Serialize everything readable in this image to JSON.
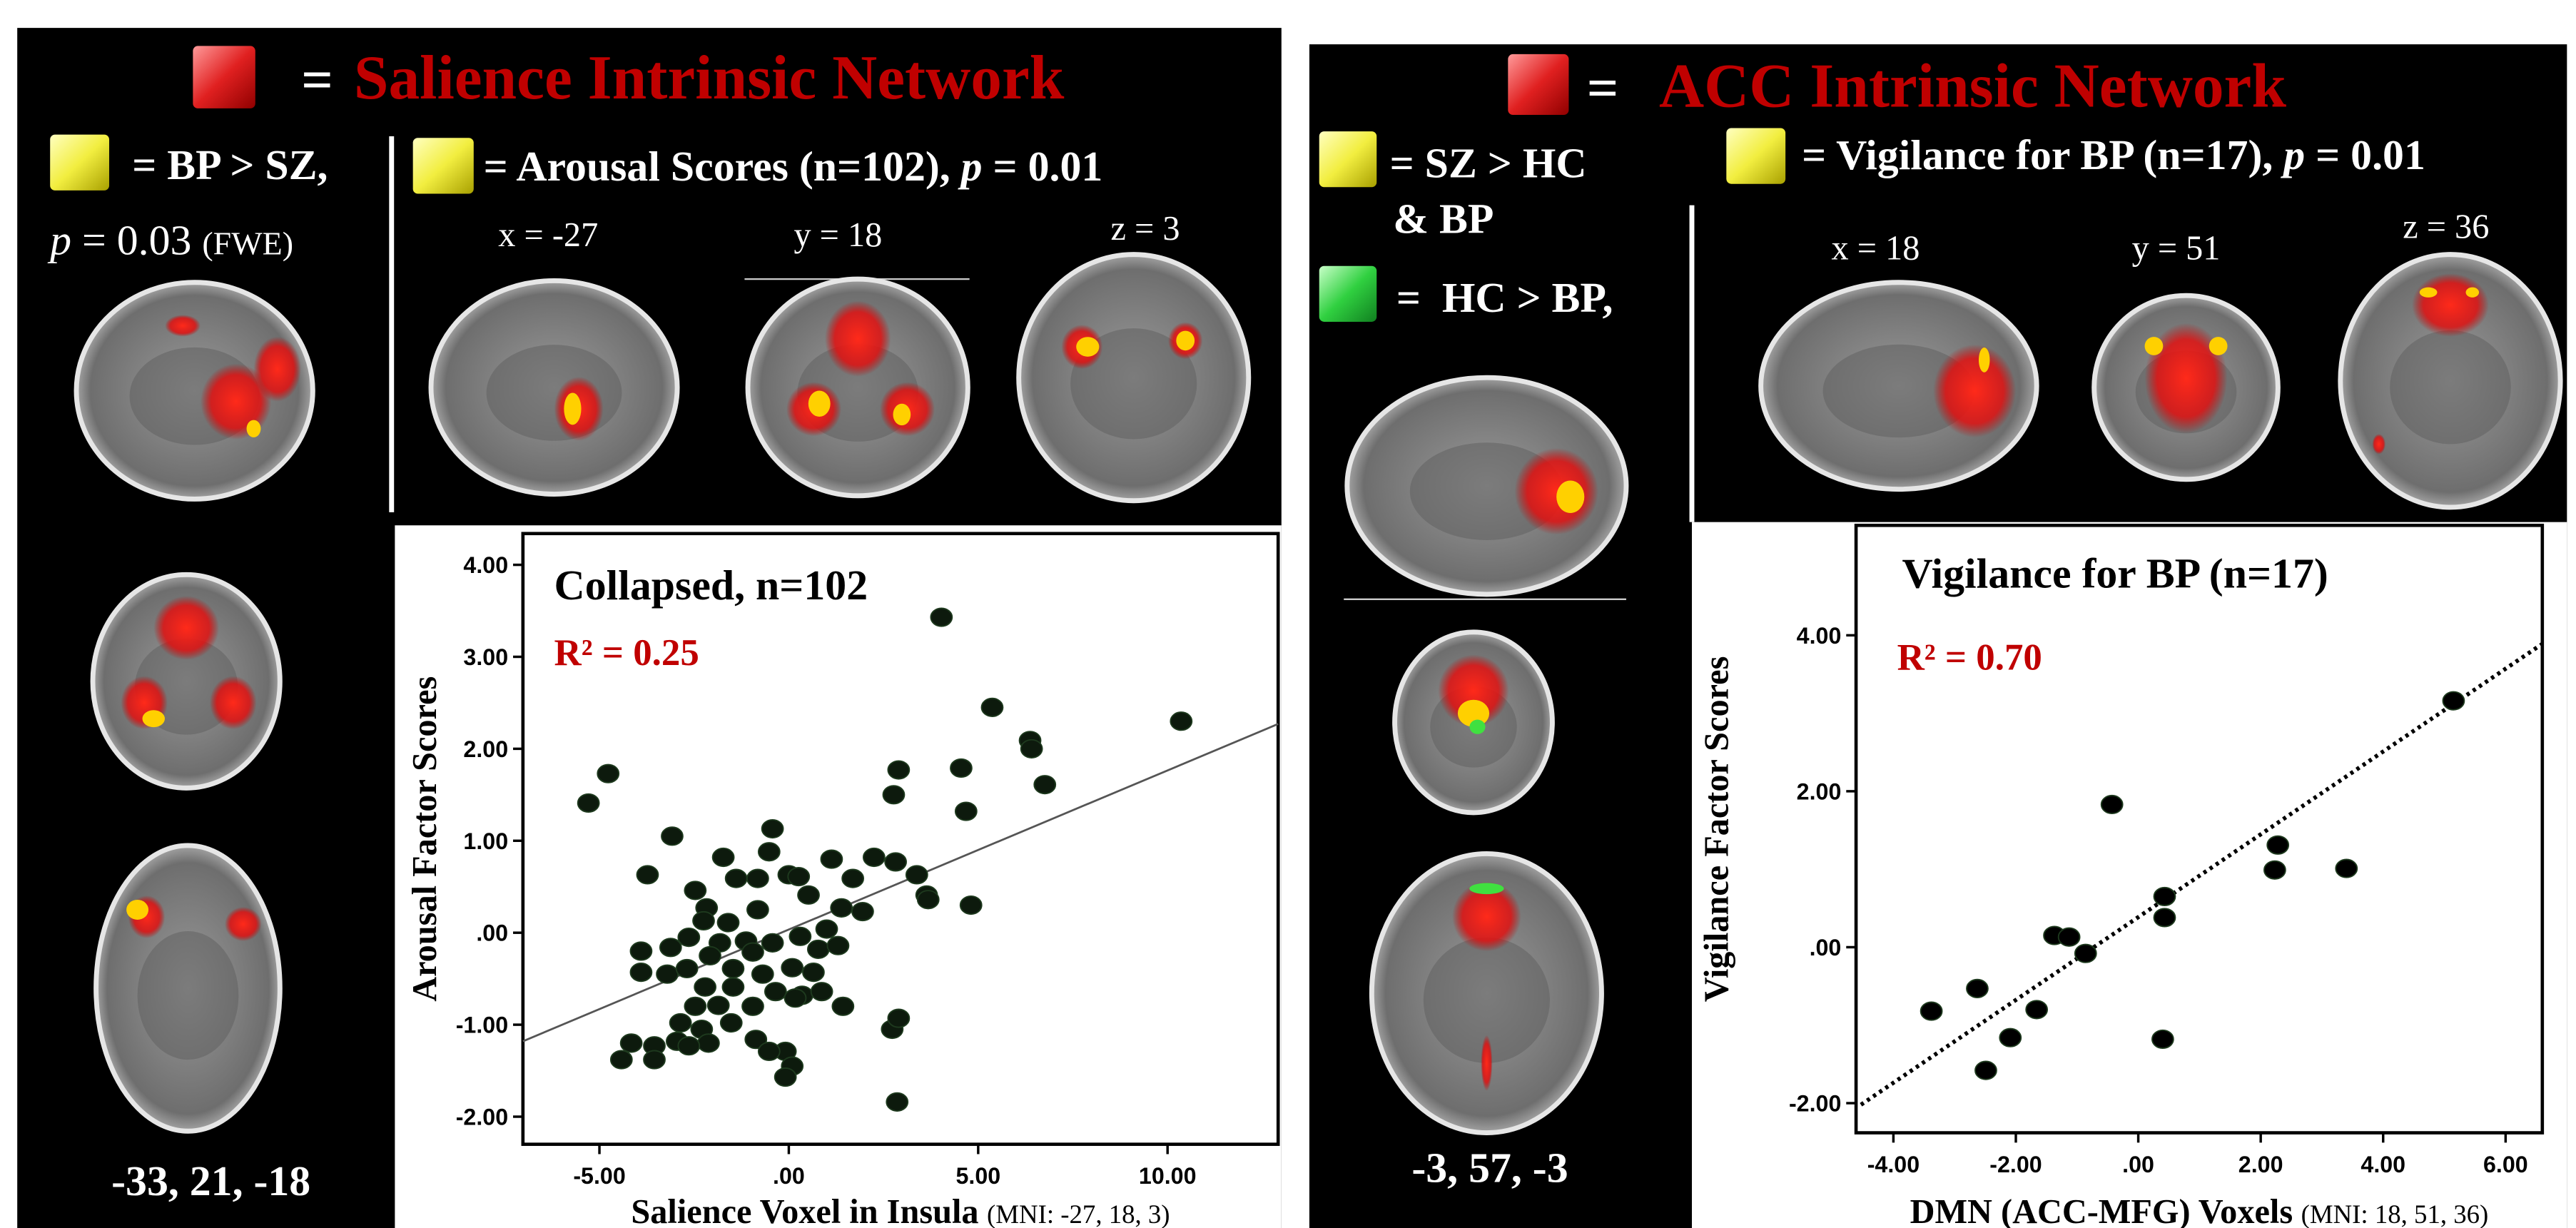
{
  "left_panel": {
    "title_eq": "=",
    "title": "Salience Intrinsic Network",
    "legend_group": "= BP > SZ,",
    "legend_group_p": "p",
    "legend_group_stat": "= 0.03",
    "legend_group_corr": "(FWE)",
    "legend_score": "= Arousal Scores (n=102),",
    "legend_score_p": "p",
    "legend_score_stat": "= 0.01",
    "slice_x": "x = -27",
    "slice_y": "y = 18",
    "slice_z": "z = 3",
    "coords": "-33, 21, -18"
  },
  "right_panel": {
    "title_eq": "=",
    "title": "ACC Intrinsic Network",
    "legend_group_1a": "= SZ > HC",
    "legend_group_1b": "& BP",
    "legend_group_2": "=  HC > BP,",
    "legend_score": "= Vigilance for BP (n=17),",
    "legend_score_p": "p",
    "legend_score_stat": "= 0.01",
    "slice_x": "x = 18",
    "slice_y": "y = 51",
    "slice_z": "z = 36",
    "coords": "-3, 57, -3"
  },
  "chart_data": [
    {
      "type": "scatter",
      "title": "Collapsed, n=102",
      "annotation": "R² = 0.25",
      "x_label": "Salience Voxel in Insula",
      "x_label_note": "(MNI: -27, 18, 3)",
      "y_label": "Arousal Factor Scores",
      "color": "#0d1a0d",
      "xlim": [
        -7.02,
        12.92
      ],
      "ylim": [
        -2.3,
        4.34
      ],
      "xticks": [
        {
          "value": -5,
          "label": "-5.00"
        },
        {
          "value": 0,
          "label": ".00"
        },
        {
          "value": 5,
          "label": "5.00"
        },
        {
          "value": 10,
          "label": "10.00"
        }
      ],
      "yticks": [
        {
          "value": -2,
          "label": "-2.00"
        },
        {
          "value": -1,
          "label": "-1.00"
        },
        {
          "value": 0,
          "label": ".00"
        },
        {
          "value": 1,
          "label": "1.00"
        },
        {
          "value": 2,
          "label": "2.00"
        },
        {
          "value": 3,
          "label": "3.00"
        },
        {
          "value": 4,
          "label": "4.00"
        }
      ],
      "fit_line": {
        "x": [
          -7.02,
          12.92
        ],
        "y": [
          -1.18,
          2.27
        ],
        "color": "#555555"
      },
      "x": [
        4.03,
        10.36,
        5.37,
        6.37,
        6.41,
        6.76,
        -4.77,
        -5.29,
        2.9,
        4.55,
        2.77,
        4.68,
        -3.08,
        -0.43,
        -0.52,
        -1.73,
        2.25,
        2.82,
        1.13,
        0,
        0.26,
        -3.73,
        -1.39,
        -0.82,
        1.69,
        3.38,
        0.52,
        -2.47,
        -2.17,
        1.39,
        1.95,
        3.64,
        3.68,
        4.81,
        -0.82,
        -2.25,
        -1.6,
        1.0,
        -2.64,
        -1.82,
        -1.13,
        -0.43,
        0.3,
        0.78,
        1.3,
        -3.12,
        -3.9,
        -2.08,
        -0.95,
        -3.9,
        -3.21,
        -2.69,
        -1.47,
        -0.69,
        0.09,
        0.65,
        -2.21,
        -1.47,
        -0.35,
        0.35,
        1.43,
        -2.47,
        -1.86,
        -0.95,
        0.17,
        0.87,
        -2.86,
        -2.3,
        -1.52,
        -2.12,
        -0.87,
        -0.09,
        -4.16,
        -3.55,
        -2.95,
        -4.42,
        -3.55,
        -2.64,
        0.09,
        -0.09,
        2.73,
        2.9,
        2.86,
        -0.52
      ],
      "values": [
        3.43,
        2.3,
        2.45,
        2.09,
        2.0,
        1.61,
        1.73,
        1.41,
        1.77,
        1.79,
        1.5,
        1.32,
        1.05,
        1.13,
        0.88,
        0.82,
        0.82,
        0.77,
        0.8,
        0.63,
        0.61,
        0.63,
        0.59,
        0.59,
        0.59,
        0.63,
        0.41,
        0.46,
        0.27,
        0.27,
        0.23,
        0.41,
        0.36,
        0.3,
        0.25,
        0.13,
        0.11,
        0.04,
        -0.05,
        -0.11,
        -0.09,
        -0.11,
        -0.04,
        -0.18,
        -0.14,
        -0.16,
        -0.2,
        -0.25,
        -0.21,
        -0.43,
        -0.45,
        -0.39,
        -0.39,
        -0.45,
        -0.38,
        -0.43,
        -0.59,
        -0.59,
        -0.64,
        -0.68,
        -0.8,
        -0.8,
        -0.79,
        -0.8,
        -0.71,
        -0.64,
        -0.98,
        -1.05,
        -0.98,
        -1.2,
        -1.16,
        -1.29,
        -1.2,
        -1.23,
        -1.18,
        -1.38,
        -1.38,
        -1.23,
        -1.45,
        -1.57,
        -1.05,
        -0.93,
        -1.84,
        -1.29
      ]
    },
    {
      "type": "scatter",
      "title": "Vigilance for BP (n=17)",
      "annotation": "R² = 0.70",
      "x_label": "DMN (ACC-MFG) Voxels",
      "x_label_note": "(MNI: 18, 51, 36)",
      "y_label": "Vigilance Factor Scores",
      "color": "#000000",
      "xlim": [
        -4.61,
        6.6
      ],
      "ylim": [
        -2.38,
        5.41
      ],
      "xticks": [
        {
          "value": -4,
          "label": "-4.00"
        },
        {
          "value": -2,
          "label": "-2.00"
        },
        {
          "value": 0,
          "label": ".00"
        },
        {
          "value": 2,
          "label": "2.00"
        },
        {
          "value": 4,
          "label": "4.00"
        },
        {
          "value": 6,
          "label": "6.00"
        }
      ],
      "yticks": [
        {
          "value": -2,
          "label": "-2.00"
        },
        {
          "value": 0,
          "label": ".00"
        },
        {
          "value": 2,
          "label": "2.00"
        },
        {
          "value": 4,
          "label": "4.00"
        }
      ],
      "fit_line": {
        "x": [
          -4.53,
          6.6
        ],
        "y": [
          -2.02,
          3.89
        ],
        "color": "#000000",
        "dotted": true
      },
      "x": [
        5.15,
        -0.43,
        2.28,
        2.23,
        3.4,
        0.43,
        0.43,
        -1.37,
        -1.13,
        -0.86,
        -3.38,
        -2.63,
        -1.66,
        -2.09,
        -2.49,
        0.4
      ],
      "values": [
        3.16,
        1.83,
        1.31,
        0.99,
        1.01,
        0.65,
        0.38,
        0.15,
        0.13,
        -0.08,
        -0.82,
        -0.53,
        -0.8,
        -1.16,
        -1.58,
        -1.18
      ]
    }
  ]
}
